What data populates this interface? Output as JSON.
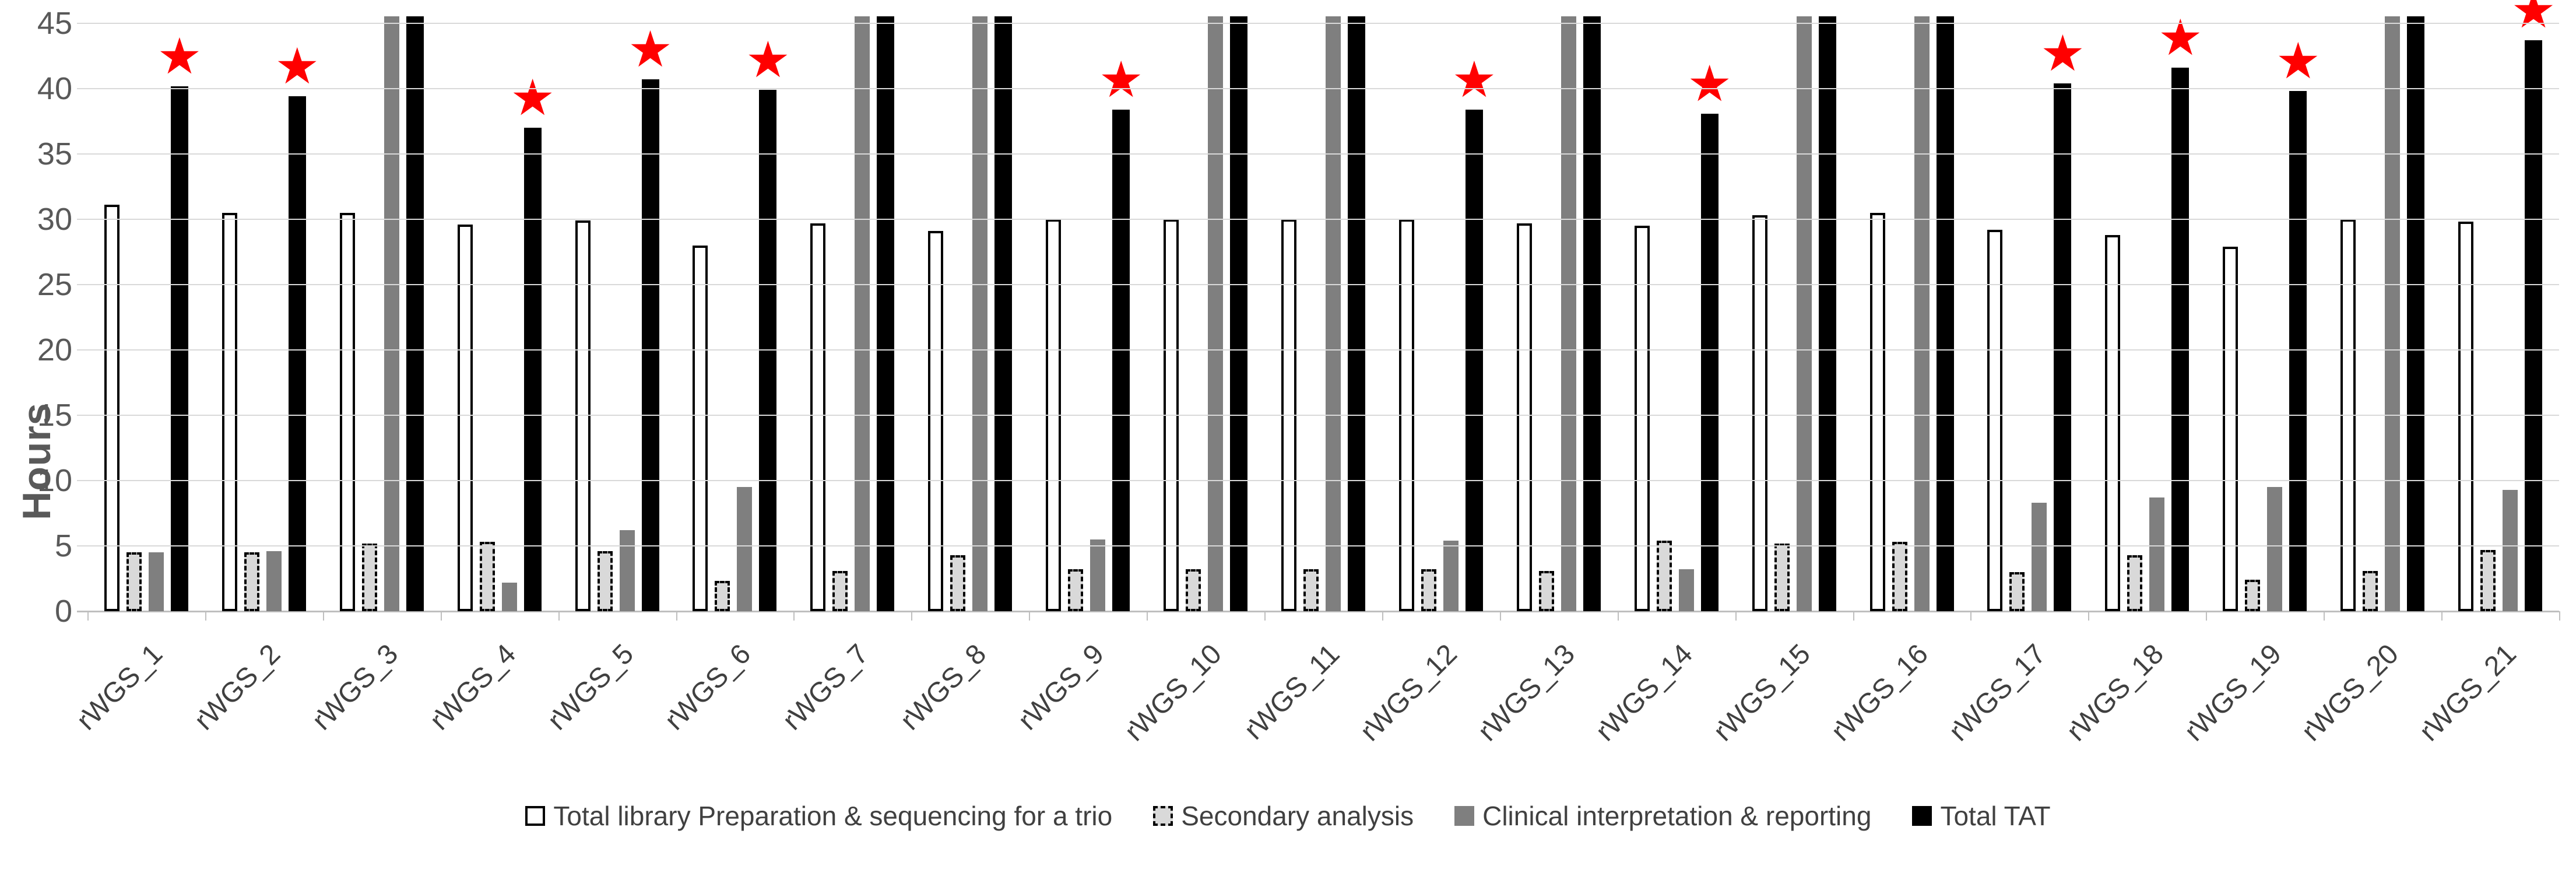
{
  "chart_data": {
    "type": "bar",
    "title": "",
    "xlabel": "",
    "ylabel": "Hours",
    "ylim": [
      0,
      45
    ],
    "yticks": [
      0,
      5,
      10,
      15,
      20,
      25,
      30,
      35,
      40,
      45
    ],
    "grid": true,
    "legend_position": "bottom",
    "categories": [
      "rWGS_1",
      "rWGS_2",
      "rWGS_3",
      "rWGS_4",
      "rWGS_5",
      "rWGS_6",
      "rWGS_7",
      "rWGS_8",
      "rWGS_9",
      "rWGS_10",
      "rWGS_11",
      "rWGS_12",
      "rWGS_13",
      "rWGS_14",
      "rWGS_15",
      "rWGS_16",
      "rWGS_17",
      "rWGS_18",
      "rWGS_19",
      "rWGS_20",
      "rWGS_21"
    ],
    "series": [
      {
        "name": "Total library Preparation & sequencing for a trio",
        "fill": "#ffffff",
        "border": "#000000",
        "border_style": "solid",
        "values": [
          31.1,
          30.5,
          30.5,
          29.6,
          29.9,
          28.0,
          29.7,
          29.1,
          30.0,
          30.0,
          30.0,
          30.0,
          29.7,
          29.5,
          30.3,
          30.5,
          29.2,
          28.8,
          27.9,
          30.0,
          29.8
        ]
      },
      {
        "name": "Secondary analysis",
        "fill": "#d9d9d9",
        "border": "#000000",
        "border_style": "dashed",
        "values": [
          4.5,
          4.5,
          5.2,
          5.3,
          4.6,
          2.3,
          3.1,
          4.3,
          3.2,
          3.2,
          3.2,
          3.2,
          3.1,
          5.4,
          5.2,
          5.3,
          3.0,
          4.3,
          2.4,
          3.1,
          4.7
        ]
      },
      {
        "name": "Clinical interpretation & reporting",
        "fill": "#7f7f7f",
        "border": "none",
        "border_style": "none",
        "values": [
          4.5,
          4.6,
          45,
          2.2,
          6.2,
          9.5,
          45,
          45,
          5.5,
          45,
          45,
          5.4,
          45,
          3.2,
          45,
          45,
          8.3,
          8.7,
          9.5,
          45,
          9.3
        ]
      },
      {
        "name": "Total TAT",
        "fill": "#000000",
        "border": "none",
        "border_style": "none",
        "values": [
          40.2,
          39.4,
          45,
          37.0,
          40.7,
          39.9,
          45,
          45,
          38.4,
          45,
          45,
          38.4,
          45,
          38.1,
          45,
          45,
          40.4,
          41.6,
          39.8,
          45,
          43.7
        ]
      }
    ],
    "stars": [
      true,
      true,
      false,
      true,
      true,
      true,
      false,
      false,
      true,
      false,
      false,
      true,
      false,
      true,
      false,
      false,
      true,
      true,
      true,
      false,
      true
    ],
    "star_glyph": "★",
    "star_color": "#ff0000",
    "note_values_at_45_are_capped": true
  },
  "colors": {
    "gridline": "#d9d9d9",
    "axis_line": "#bfbfbf",
    "axis_text": "#595959",
    "category_text": "#404040",
    "legend_text": "#404040"
  }
}
